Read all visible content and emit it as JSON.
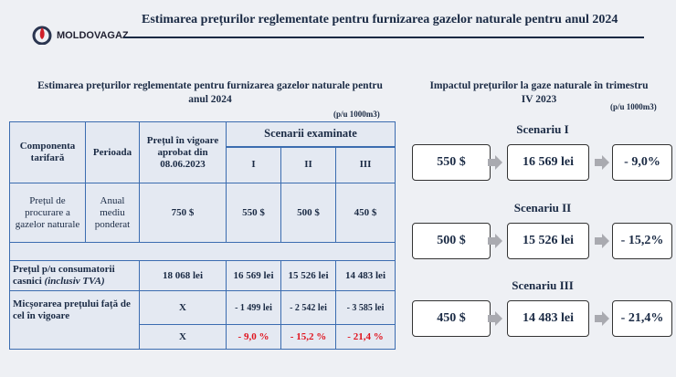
{
  "header": {
    "logo": "MOLDOVAGAZ",
    "title": "Estimarea prețurilor reglementate pentru furnizarea gazelor naturale pentru anul 2024"
  },
  "table_section": {
    "title": "Estimarea prețurilor reglementate pentru furnizarea gazelor naturale pentru anul 2024",
    "unit": "(p/u 1000m3)"
  },
  "table": {
    "headers": {
      "component": "Componenta tarifară",
      "period": "Perioada",
      "current": "Prețul în vigoare aprobat din 08.06.2023",
      "scenarios": "Scenarii examinate",
      "scenario_names": [
        "I",
        "II",
        "III"
      ]
    },
    "purchase": {
      "component": "Prețul de procurare a gazelor naturale",
      "period": "Anual mediu ponderat",
      "values": [
        "750 $",
        "550 $",
        "500 $",
        "450 $"
      ]
    },
    "household": {
      "label": "Prețul p/u consumatorii casnici",
      "note": "(inclusiv TVA)",
      "values": [
        "18 068 lei",
        "16 569 lei",
        "15 526 lei",
        "14 483 lei"
      ]
    },
    "reduction": {
      "label": "Micșorarea prețului față de cel în vigoare",
      "absolute": [
        "X",
        "- 1 499 lei",
        "- 2 542 lei",
        "- 3 585 lei"
      ],
      "percent": [
        "X",
        "- 9,0 %",
        "- 15,2 %",
        "- 21,4 %"
      ]
    }
  },
  "impact": {
    "title": "Impactul prețurilor la gaze naturale în trimestru IV 2023",
    "unit": "(p/u 1000m3)",
    "scenarios": [
      {
        "name": "Scenariu I",
        "price": "550 $",
        "lei": "16 569 lei",
        "change": "- 9,0%"
      },
      {
        "name": "Scenariu II",
        "price": "500 $",
        "lei": "15 526 lei",
        "change": "- 15,2%"
      },
      {
        "name": "Scenariu III",
        "price": "450 $",
        "lei": "14 483 lei",
        "change": "- 21,4%"
      }
    ]
  }
}
